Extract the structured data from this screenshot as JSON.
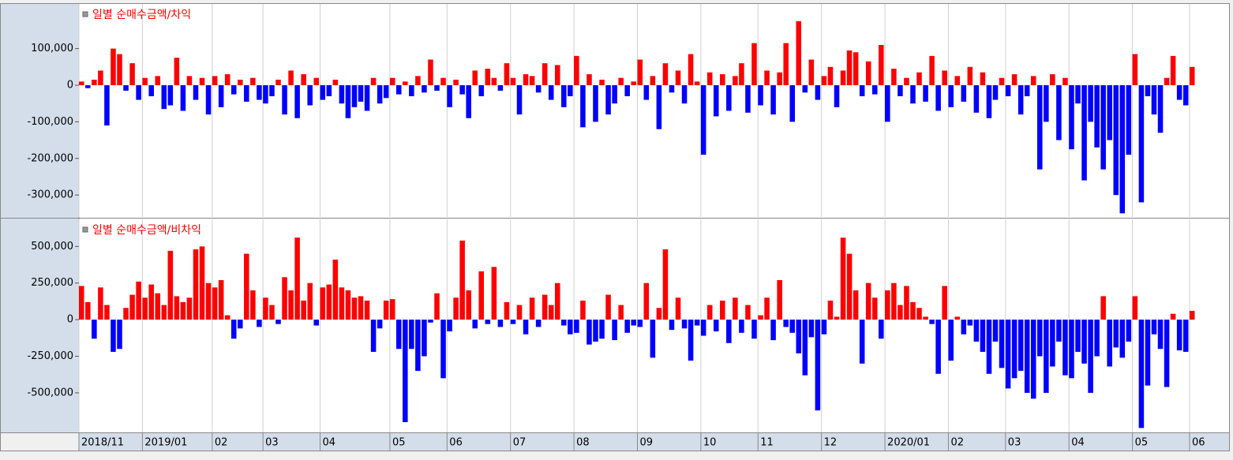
{
  "chart_data": [
    {
      "type": "bar",
      "title": "일별 순매수금액/차익",
      "positive_color": "#ff0000",
      "negative_color": "#0000ff",
      "xlim": [
        0,
        176
      ],
      "ylim": [
        -360000,
        222000
      ],
      "yticks": [
        {
          "value": 100000,
          "label": "100,000"
        },
        0,
        {
          "value": -100000,
          "label": "-100,000"
        },
        {
          "value": -200000,
          "label": "-200,000"
        },
        {
          "value": -300000,
          "label": "-300,000"
        }
      ],
      "values": [
        10000,
        -8000,
        15000,
        40000,
        -110000,
        100000,
        85000,
        -15000,
        60000,
        -40000,
        20000,
        -30000,
        25000,
        -65000,
        -55000,
        75000,
        -70000,
        25000,
        -40000,
        20000,
        -80000,
        25000,
        -60000,
        30000,
        -25000,
        15000,
        -45000,
        20000,
        -40000,
        -50000,
        -30000,
        15000,
        -80000,
        40000,
        -90000,
        30000,
        -55000,
        20000,
        -40000,
        -30000,
        15000,
        -50000,
        -90000,
        -60000,
        -45000,
        -70000,
        20000,
        -50000,
        -35000,
        20000,
        -25000,
        10000,
        -30000,
        25000,
        -20000,
        70000,
        -15000,
        20000,
        -60000,
        15000,
        -25000,
        -90000,
        40000,
        -30000,
        45000,
        20000,
        -15000,
        60000,
        20000,
        -80000,
        30000,
        25000,
        -20000,
        60000,
        -40000,
        55000,
        -60000,
        -30000,
        80000,
        -115000,
        30000,
        -100000,
        15000,
        -80000,
        -50000,
        20000,
        -30000,
        10000,
        70000,
        -40000,
        25000,
        -120000,
        60000,
        -20000,
        40000,
        -50000,
        85000,
        10000,
        -190000,
        35000,
        -85000,
        30000,
        -70000,
        25000,
        60000,
        -75000,
        115000,
        -55000,
        40000,
        -80000,
        35000,
        115000,
        -100000,
        175000,
        -20000,
        70000,
        -40000,
        25000,
        50000,
        -60000,
        40000,
        95000,
        90000,
        -30000,
        65000,
        -25000,
        110000,
        -100000,
        45000,
        -30000,
        20000,
        -50000,
        35000,
        -45000,
        80000,
        -70000,
        40000,
        -60000,
        25000,
        -45000,
        50000,
        -75000,
        35000,
        -90000,
        -40000,
        20000,
        -30000,
        30000,
        -80000,
        -30000,
        25000,
        -230000,
        -100000,
        30000,
        -150000,
        20000,
        -175000,
        -50000,
        -260000,
        -100000,
        -170000,
        -230000,
        -150000,
        -300000,
        -350000,
        -190000,
        85000,
        -320000,
        -30000,
        -80000,
        -130000,
        20000,
        80000,
        -40000,
        -55000,
        50000
      ]
    },
    {
      "type": "bar",
      "title": "일별 순매수금액/비차익",
      "positive_color": "#ff0000",
      "negative_color": "#0000ff",
      "xlim": [
        0,
        176
      ],
      "ylim": [
        -770000,
        685000
      ],
      "yticks": [
        {
          "value": 500000,
          "label": "500,000"
        },
        {
          "value": 250000,
          "label": "250,000"
        },
        0,
        {
          "value": -250000,
          "label": "-250,000"
        },
        {
          "value": -500000,
          "label": "-500,000"
        }
      ],
      "xticks": [
        {
          "value": 0,
          "label": "2018/11"
        },
        {
          "value": 10,
          "label": "2019/01"
        },
        {
          "value": 21,
          "label": "02"
        },
        {
          "value": 29,
          "label": "03"
        },
        {
          "value": 38,
          "label": "04"
        },
        {
          "value": 49,
          "label": "05"
        },
        {
          "value": 58,
          "label": "06"
        },
        {
          "value": 68,
          "label": "07"
        },
        {
          "value": 78,
          "label": "08"
        },
        {
          "value": 88,
          "label": "09"
        },
        {
          "value": 98,
          "label": "10"
        },
        {
          "value": 107,
          "label": "11"
        },
        {
          "value": 117,
          "label": "12"
        },
        {
          "value": 127,
          "label": "2020/01"
        },
        {
          "value": 137,
          "label": "02"
        },
        {
          "value": 146,
          "label": "03"
        },
        {
          "value": 156,
          "label": "04"
        },
        {
          "value": 166,
          "label": "05"
        },
        {
          "value": 175,
          "label": "06"
        }
      ],
      "values": [
        230000,
        120000,
        -130000,
        220000,
        100000,
        -220000,
        -200000,
        80000,
        170000,
        260000,
        150000,
        240000,
        180000,
        100000,
        470000,
        160000,
        120000,
        150000,
        480000,
        500000,
        250000,
        220000,
        270000,
        30000,
        -130000,
        -60000,
        450000,
        200000,
        -50000,
        150000,
        100000,
        -30000,
        290000,
        200000,
        560000,
        130000,
        250000,
        -40000,
        220000,
        240000,
        410000,
        220000,
        200000,
        150000,
        160000,
        130000,
        -220000,
        -60000,
        130000,
        140000,
        -200000,
        -700000,
        -200000,
        -350000,
        -250000,
        -20000,
        180000,
        -400000,
        -80000,
        150000,
        540000,
        200000,
        -60000,
        330000,
        -30000,
        360000,
        -50000,
        120000,
        -30000,
        100000,
        -100000,
        150000,
        -50000,
        170000,
        100000,
        250000,
        -40000,
        -100000,
        -90000,
        130000,
        -170000,
        -150000,
        -130000,
        170000,
        -140000,
        100000,
        -90000,
        -40000,
        -50000,
        250000,
        -260000,
        80000,
        480000,
        -70000,
        150000,
        -60000,
        -280000,
        -40000,
        -110000,
        100000,
        -80000,
        130000,
        -160000,
        150000,
        -90000,
        100000,
        -130000,
        30000,
        150000,
        -140000,
        270000,
        -50000,
        -90000,
        -230000,
        -380000,
        -120000,
        -620000,
        -100000,
        130000,
        20000,
        560000,
        450000,
        200000,
        -300000,
        250000,
        150000,
        -130000,
        200000,
        250000,
        100000,
        230000,
        120000,
        80000,
        20000,
        -30000,
        -370000,
        230000,
        -280000,
        20000,
        -100000,
        -40000,
        -150000,
        -220000,
        -370000,
        -150000,
        -330000,
        -470000,
        -400000,
        -350000,
        -500000,
        -540000,
        -250000,
        -500000,
        -320000,
        -150000,
        -380000,
        -400000,
        -220000,
        -300000,
        -500000,
        -250000,
        160000,
        -320000,
        -190000,
        -260000,
        -150000,
        160000,
        -740000,
        -450000,
        -100000,
        -200000,
        -460000,
        40000,
        -210000,
        -220000,
        60000
      ]
    }
  ]
}
